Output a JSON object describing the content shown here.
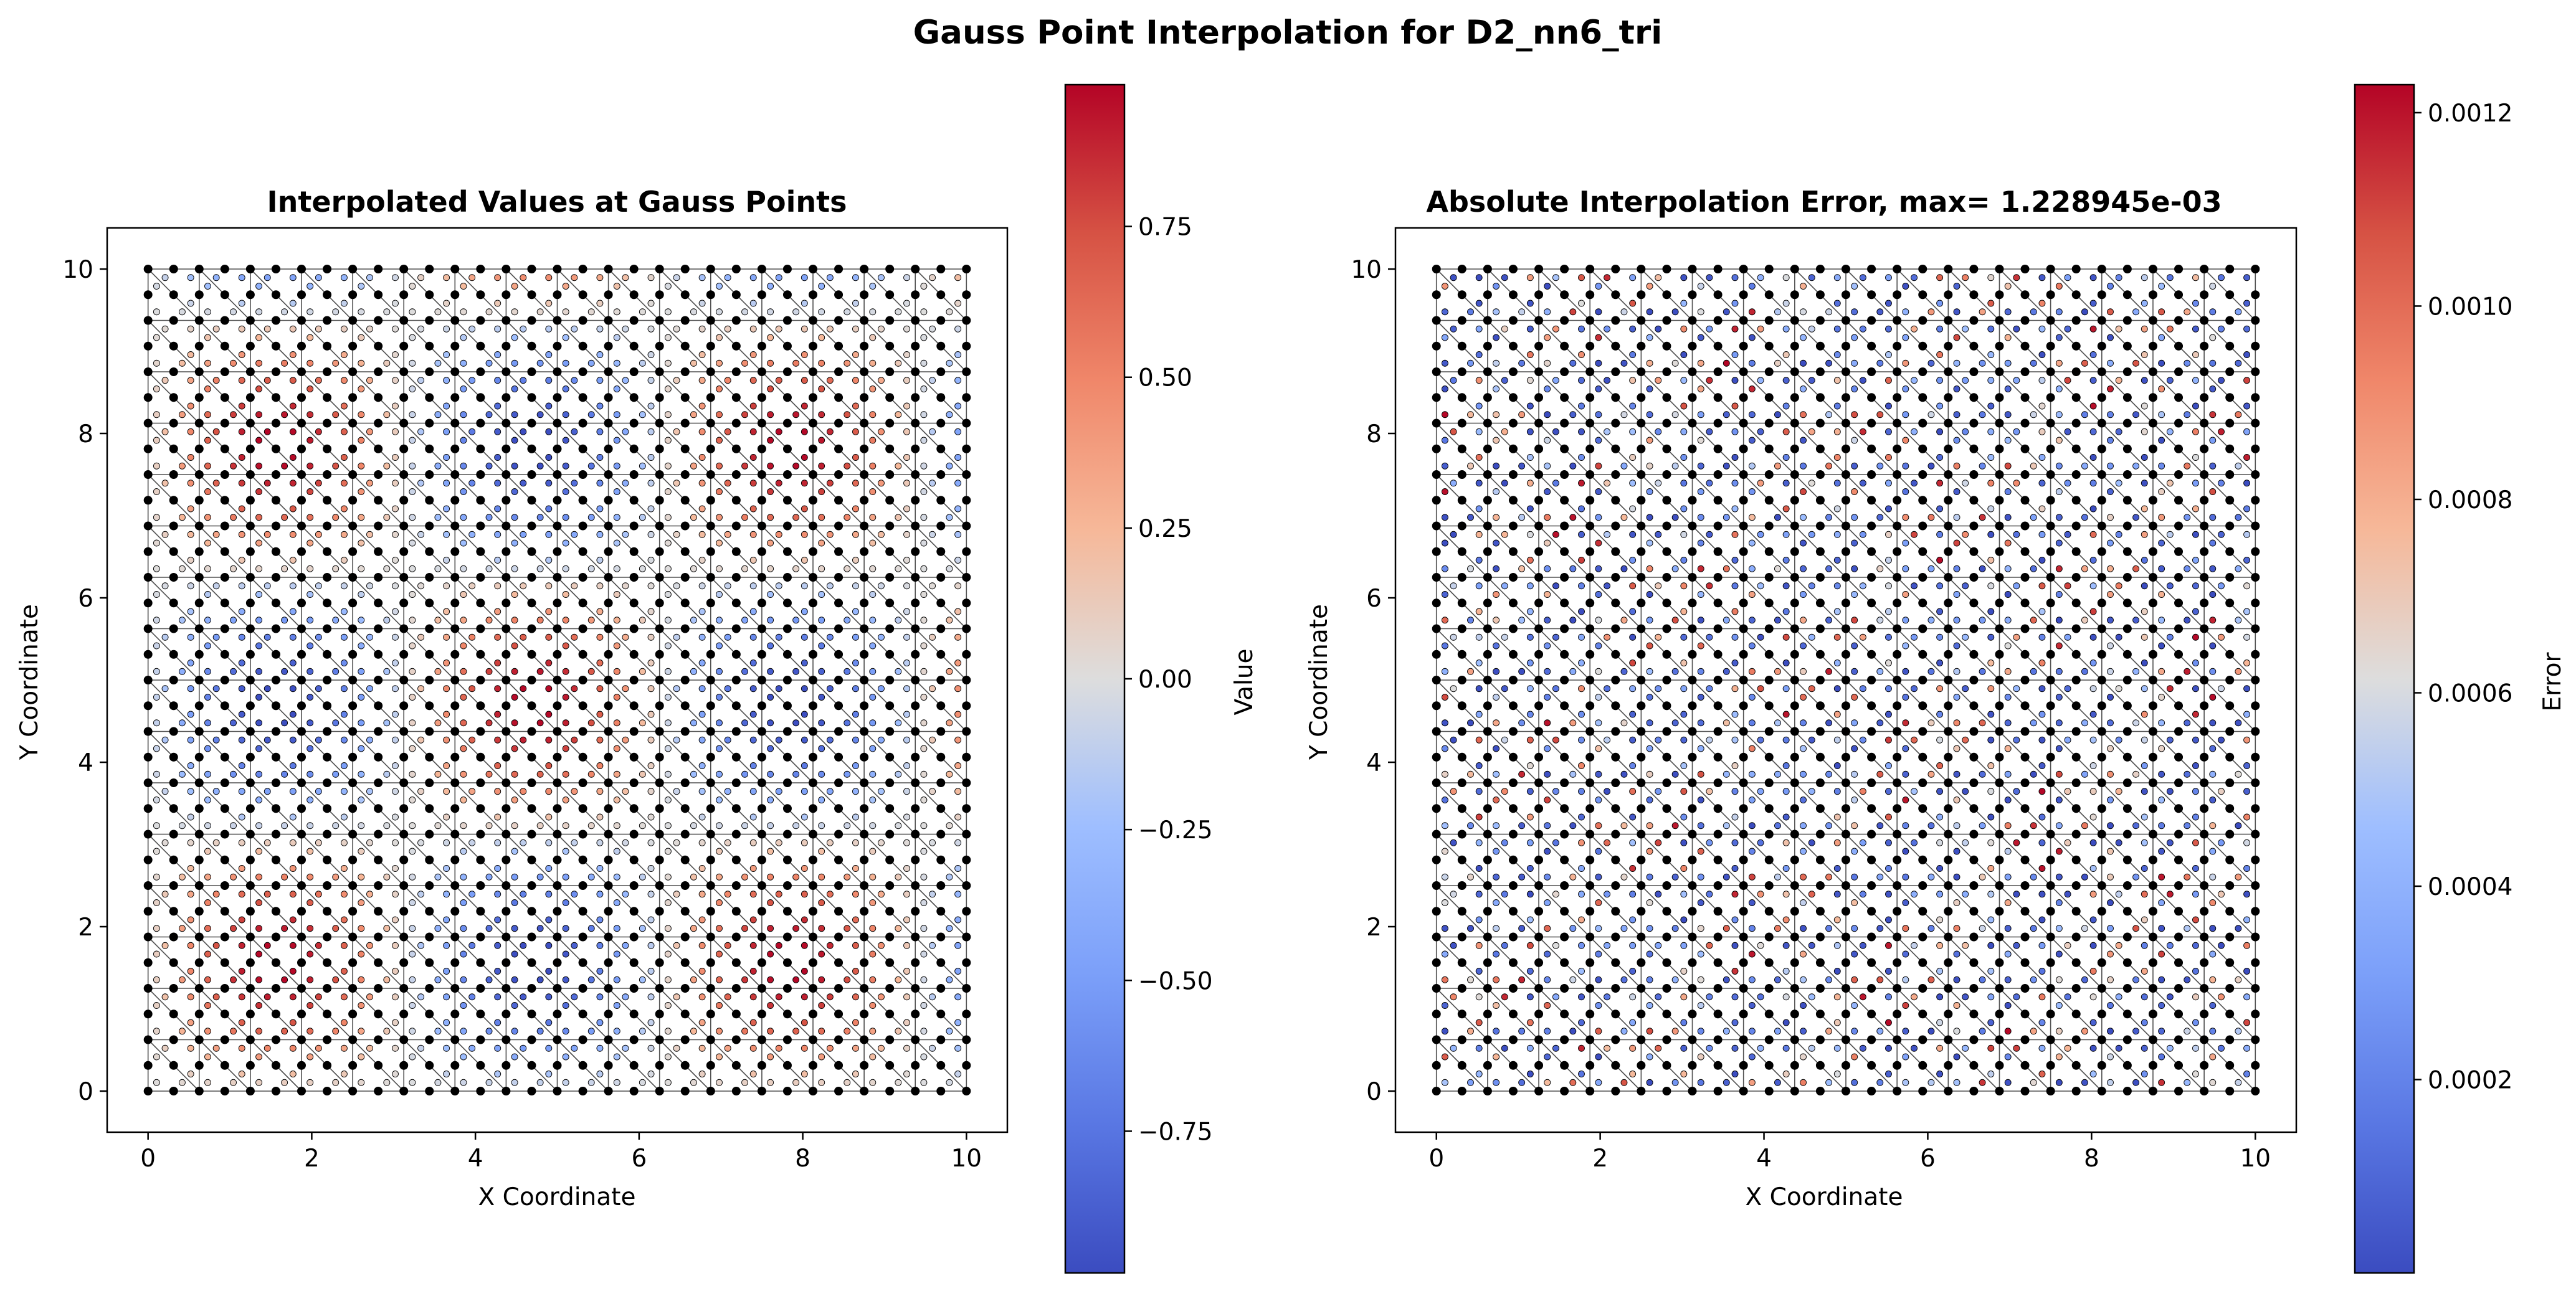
{
  "figure": {
    "suptitle": "Gauss Point Interpolation for D2_nn6_tri"
  },
  "chart_data": [
    {
      "type": "scatter",
      "title": "Interpolated Values at Gauss Points",
      "xlabel": "X Coordinate",
      "ylabel": "Y Coordinate",
      "xlim": [
        -0.5,
        10.5
      ],
      "ylim": [
        -0.5,
        10.5
      ],
      "xticks": [
        "0",
        "2",
        "4",
        "6",
        "8",
        "10"
      ],
      "yticks": [
        "0",
        "2",
        "4",
        "6",
        "8",
        "10"
      ],
      "xtick_values": [
        0,
        2,
        4,
        6,
        8,
        10
      ],
      "ytick_values": [
        0,
        2,
        4,
        6,
        8,
        10
      ],
      "mesh": {
        "elements_per_side": 16,
        "nodes_per_side": 33,
        "element_type": "6-node triangle",
        "domain": [
          0,
          10
        ]
      },
      "field": "sin(x)*sin(y)",
      "colormap": "coolwarm",
      "colorbar": {
        "label": "Value",
        "range": [
          -0.985,
          0.985
        ],
        "ticks": [
          {
            "value": -0.75,
            "label": "−0.75"
          },
          {
            "value": -0.5,
            "label": "−0.50"
          },
          {
            "value": -0.25,
            "label": "−0.25"
          },
          {
            "value": 0.0,
            "label": "0.00"
          },
          {
            "value": 0.25,
            "label": "0.25"
          },
          {
            "value": 0.5,
            "label": "0.50"
          },
          {
            "value": 0.75,
            "label": "0.75"
          }
        ]
      }
    },
    {
      "type": "scatter",
      "title": "Absolute Interpolation Error, max= 1.228945e-03",
      "xlabel": "X Coordinate",
      "ylabel": "Y Coordinate",
      "xlim": [
        -0.5,
        10.5
      ],
      "ylim": [
        -0.5,
        10.5
      ],
      "xticks": [
        "0",
        "2",
        "4",
        "6",
        "8",
        "10"
      ],
      "yticks": [
        "0",
        "2",
        "4",
        "6",
        "8",
        "10"
      ],
      "xtick_values": [
        0,
        2,
        4,
        6,
        8,
        10
      ],
      "ytick_values": [
        0,
        2,
        4,
        6,
        8,
        10
      ],
      "mesh": {
        "elements_per_side": 16,
        "nodes_per_side": 33,
        "element_type": "6-node triangle",
        "domain": [
          0,
          10
        ]
      },
      "field": "absolute interpolation error",
      "max_error": 0.001228945,
      "colormap": "coolwarm",
      "colorbar": {
        "label": "Error",
        "range": [
          0.0,
          0.001228945
        ],
        "ticks": [
          {
            "value": 0.0002,
            "label": "0.0002"
          },
          {
            "value": 0.0004,
            "label": "0.0004"
          },
          {
            "value": 0.0006,
            "label": "0.0006"
          },
          {
            "value": 0.0008,
            "label": "0.0008"
          },
          {
            "value": 0.001,
            "label": "0.0010"
          },
          {
            "value": 0.0012,
            "label": "0.0012"
          }
        ]
      }
    }
  ]
}
